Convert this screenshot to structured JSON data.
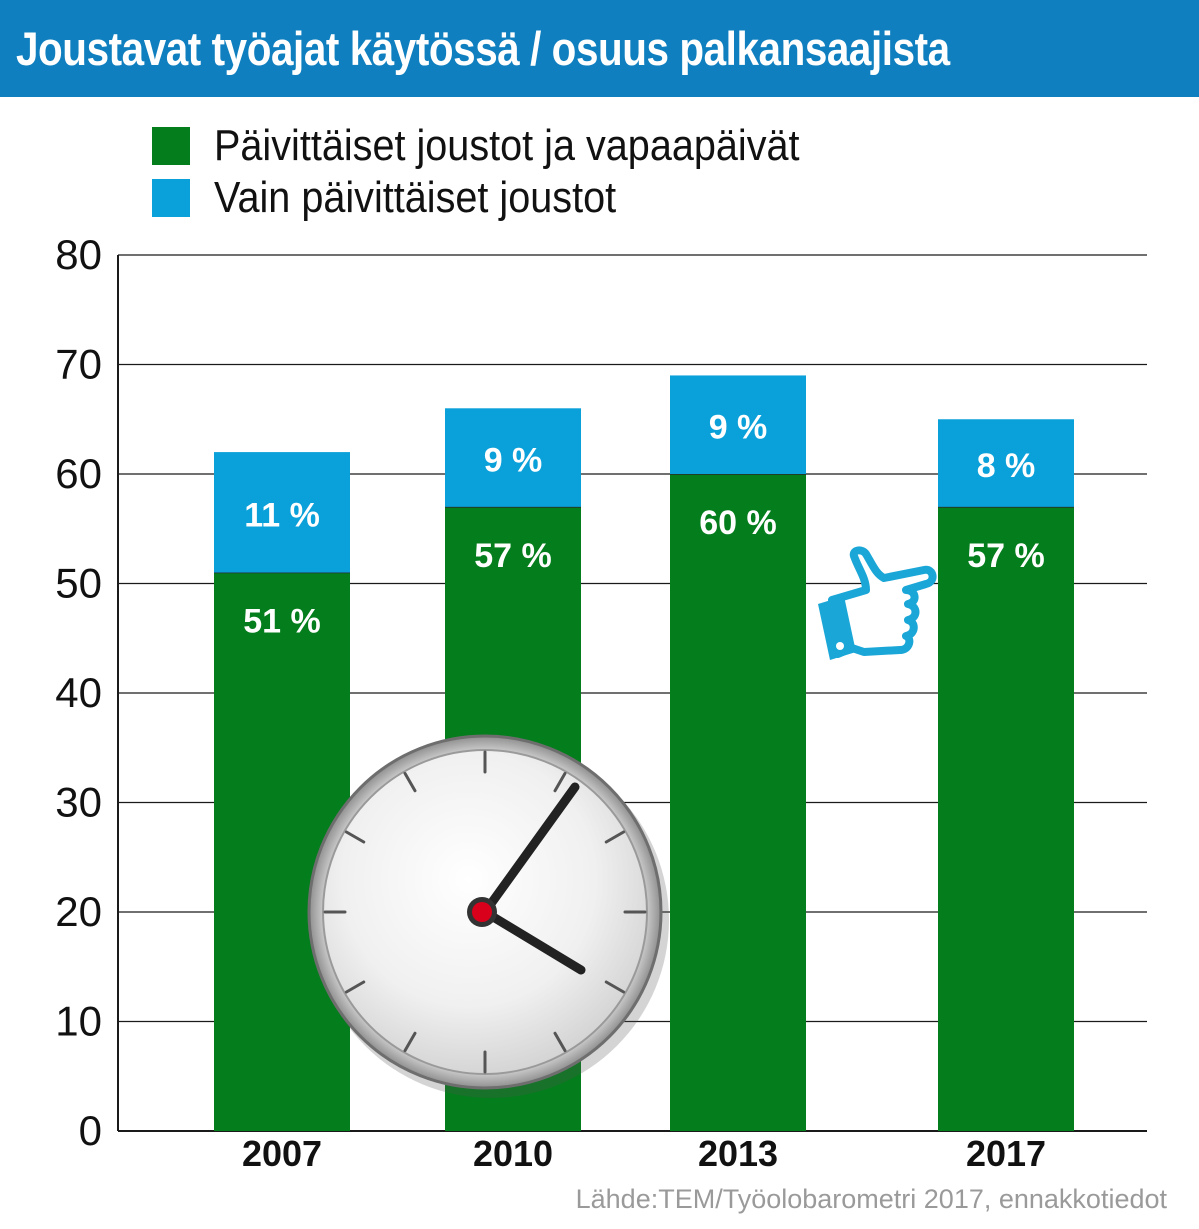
{
  "title": "Joustavat työajat käytössä / osuus palkansaajista",
  "source": "Lähde:TEM/Työolobarometri 2017, ennakkotiedot",
  "colors": {
    "header_bg": "#0f7fbf",
    "green": "#047d1c",
    "blue": "#0aa0d9",
    "grid": "#1a1a1a"
  },
  "legend": [
    {
      "label": "Päivittäiset joustot ja vapaapäivät",
      "color": "#047d1c"
    },
    {
      "label": "Vain päivittäiset joustot",
      "color": "#0aa0d9"
    }
  ],
  "icons": [
    "clock-icon",
    "pointing-hand-icon"
  ],
  "chart_data": {
    "type": "bar",
    "stacked": true,
    "categories": [
      "2007",
      "2010",
      "2013",
      "2017"
    ],
    "series": [
      {
        "name": "Päivittäiset joustot ja vapaapäivät",
        "values": [
          51,
          57,
          60,
          57
        ],
        "labels": [
          "51 %",
          "57 %",
          "60 %",
          "57 %"
        ],
        "color": "#047d1c"
      },
      {
        "name": "Vain päivittäiset joustot",
        "values": [
          11,
          9,
          9,
          8
        ],
        "labels": [
          "11 %",
          "9 %",
          "9 %",
          "8 %"
        ],
        "color": "#0aa0d9"
      }
    ],
    "ylim": [
      0,
      80
    ],
    "yticks": [
      "0",
      "10",
      "20",
      "30",
      "40",
      "50",
      "60",
      "70",
      "80"
    ],
    "grid": true,
    "legend_position": "top-left"
  }
}
